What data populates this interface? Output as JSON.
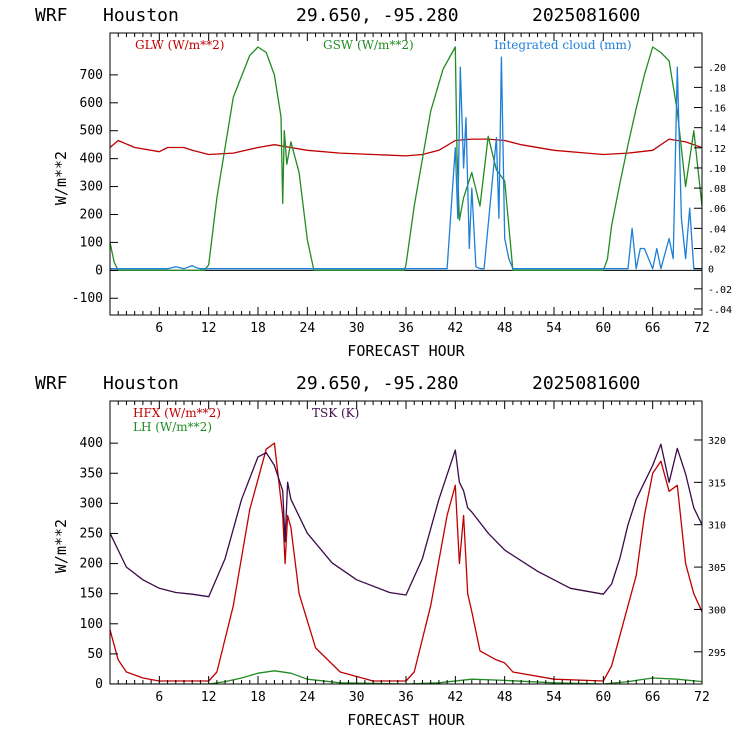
{
  "charts_header": [
    {
      "model": "WRF",
      "site": "Houston",
      "coords": "29.650, -95.280",
      "run": "2025081600"
    },
    {
      "model": "WRF",
      "site": "Houston",
      "coords": "29.650, -95.280",
      "run": "2025081600"
    }
  ],
  "colors": {
    "red": "#c00000",
    "green": "#228b22",
    "blue": "#1e7fd8",
    "purple": "#3c0a4a",
    "axis": "#000000"
  },
  "chart_data": [
    {
      "type": "line",
      "xlabel": "FORECAST HOUR",
      "ylabel": "W/m**2",
      "xlim": [
        0,
        72
      ],
      "xticks": [
        "6",
        "12",
        "18",
        "24",
        "30",
        "36",
        "42",
        "48",
        "54",
        "60",
        "66",
        "72"
      ],
      "ylim": [
        -160,
        850
      ],
      "yticks": [
        "-100",
        "0",
        "100",
        "200",
        "300",
        "400",
        "500",
        "600",
        "700"
      ],
      "y2lim": [
        -0.046,
        0.234
      ],
      "y2ticks": [
        "-.04",
        "-.02",
        "0",
        ".02",
        ".04",
        ".06",
        ".08",
        ".10",
        ".12",
        ".14",
        ".16",
        ".18",
        ".20"
      ],
      "grid": false,
      "legend_position": "top",
      "series": [
        {
          "name": "GLW (W/m**2)",
          "color": "#c00000",
          "axis": "left",
          "x": [
            0,
            1,
            3,
            6,
            7,
            9,
            10,
            12,
            15,
            18,
            20,
            22,
            24,
            28,
            32,
            36,
            38,
            40,
            42,
            44,
            46,
            48,
            50,
            54,
            58,
            60,
            63,
            66,
            68,
            70,
            72
          ],
          "y": [
            440,
            465,
            440,
            425,
            440,
            440,
            430,
            415,
            420,
            440,
            450,
            440,
            430,
            420,
            415,
            410,
            415,
            430,
            465,
            470,
            470,
            465,
            450,
            430,
            420,
            415,
            420,
            430,
            470,
            460,
            440
          ]
        },
        {
          "name": "GSW (W/m**2)",
          "color": "#228b22",
          "axis": "left",
          "x": [
            0,
            0.5,
            1,
            11.5,
            12,
            13,
            15,
            17,
            18,
            19,
            20,
            20.8,
            21,
            21.2,
            21.5,
            22,
            23,
            24,
            24.8,
            25,
            35.8,
            36,
            37,
            39,
            40.5,
            42,
            42.2,
            42.5,
            43,
            44,
            45,
            46,
            47,
            48,
            49,
            60,
            60.5,
            61,
            62,
            63,
            64,
            65,
            66,
            67,
            68,
            69,
            70,
            71,
            72
          ],
          "y": [
            100,
            30,
            0,
            0,
            20,
            260,
            620,
            770,
            800,
            780,
            700,
            550,
            240,
            500,
            380,
            460,
            350,
            110,
            0,
            0,
            0,
            20,
            230,
            570,
            720,
            800,
            420,
            180,
            260,
            350,
            230,
            480,
            360,
            320,
            0,
            0,
            40,
            160,
            310,
            450,
            580,
            700,
            800,
            780,
            750,
            570,
            300,
            500,
            230
          ]
        },
        {
          "name": "Integrated cloud (mm)",
          "color": "#1e7fd8",
          "axis": "right",
          "x": [
            0,
            7,
            8,
            9,
            10,
            10.5,
            11,
            41,
            42,
            42.3,
            42.6,
            43,
            43.3,
            43.7,
            44,
            44.5,
            45,
            45.5,
            47,
            47.3,
            47.6,
            48,
            48.5,
            49,
            63,
            63.5,
            64,
            64.5,
            65,
            66,
            66.5,
            67,
            68,
            68.5,
            69,
            69.5,
            70,
            70.5,
            71,
            72
          ],
          "y": [
            0,
            0,
            0.002,
            0,
            0.003,
            0.001,
            0,
            0,
            0.12,
            0.05,
            0.2,
            0.1,
            0.15,
            0.02,
            0.08,
            0.002,
            0,
            0,
            0.13,
            0.05,
            0.21,
            0.03,
            0.01,
            0,
            0,
            0.04,
            0,
            0.02,
            0.02,
            0,
            0.02,
            0,
            0.03,
            0.01,
            0.2,
            0.05,
            0.01,
            0.06,
            0,
            0
          ]
        }
      ]
    },
    {
      "type": "line",
      "xlabel": "FORECAST HOUR",
      "ylabel": "W/m**2",
      "xlim": [
        0,
        72
      ],
      "xticks": [
        "6",
        "12",
        "18",
        "24",
        "30",
        "36",
        "42",
        "48",
        "54",
        "60",
        "66",
        "72"
      ],
      "ylim": [
        0,
        470
      ],
      "yticks": [
        "0",
        "50",
        "100",
        "150",
        "200",
        "250",
        "300",
        "350",
        "400"
      ],
      "y2lim": [
        291.2,
        324.6
      ],
      "y2ticks": [
        "295",
        "300",
        "305",
        "310",
        "315",
        "320"
      ],
      "grid": false,
      "legend_position": "top-left",
      "series": [
        {
          "name": "HFX (W/m**2)",
          "color": "#c00000",
          "axis": "left",
          "x": [
            0,
            1,
            2,
            4,
            6,
            8,
            10,
            12,
            13,
            15,
            17,
            19,
            20,
            21,
            21.3,
            21.6,
            22,
            23,
            25,
            28,
            32,
            36,
            37,
            39,
            41,
            42,
            42.5,
            43,
            43.5,
            44,
            45,
            47,
            48,
            49,
            54,
            60,
            61,
            62,
            63,
            64,
            65,
            66,
            67,
            68,
            69,
            70,
            71,
            72
          ],
          "y": [
            90,
            40,
            20,
            10,
            5,
            5,
            5,
            5,
            20,
            130,
            290,
            390,
            400,
            280,
            200,
            280,
            260,
            150,
            60,
            20,
            5,
            5,
            20,
            130,
            280,
            330,
            200,
            280,
            150,
            120,
            55,
            40,
            35,
            20,
            8,
            5,
            30,
            80,
            130,
            180,
            280,
            350,
            370,
            320,
            330,
            200,
            150,
            120
          ]
        },
        {
          "name": "LH (W/m**2)",
          "color": "#228b22",
          "axis": "left",
          "x": [
            0,
            6,
            12,
            14,
            16,
            18,
            20,
            22,
            24,
            28,
            36,
            40,
            44,
            48,
            54,
            60,
            63,
            66,
            69,
            72
          ],
          "y": [
            0,
            0,
            0,
            4,
            10,
            18,
            22,
            18,
            8,
            2,
            0,
            2,
            8,
            6,
            2,
            0,
            4,
            10,
            8,
            4
          ]
        },
        {
          "name": "TSK (K)",
          "color": "#3c0a4a",
          "axis": "right",
          "x": [
            0,
            1,
            2,
            4,
            6,
            8,
            10,
            12,
            14,
            16,
            18,
            19,
            20,
            21,
            21.3,
            21.6,
            22,
            24,
            27,
            30,
            34,
            36,
            38,
            40,
            42,
            42.5,
            43,
            43.5,
            44,
            46,
            48,
            52,
            56,
            60,
            61,
            62,
            63,
            64,
            65,
            66,
            67,
            68,
            69,
            70,
            71,
            72
          ],
          "y": [
            309,
            307,
            305,
            303.5,
            302.5,
            302,
            301.8,
            301.5,
            306,
            313,
            318,
            318.5,
            317,
            314,
            308,
            315,
            313,
            309,
            305.5,
            303.5,
            302,
            301.7,
            306,
            313,
            318.8,
            315,
            314,
            312,
            311.5,
            309,
            307,
            304.5,
            302.5,
            301.8,
            303,
            306,
            310,
            313,
            315,
            317,
            319.5,
            315,
            319,
            316,
            312,
            310
          ]
        }
      ]
    }
  ]
}
